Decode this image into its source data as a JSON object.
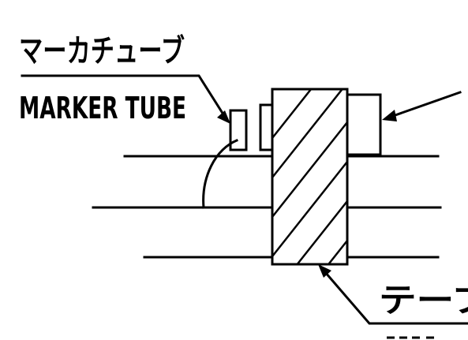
{
  "labels": {
    "marker_tube_jp": "マーカチューブ",
    "marker_tube_en": "MARKER TUBE",
    "tape_jp": "テープ"
  }
}
